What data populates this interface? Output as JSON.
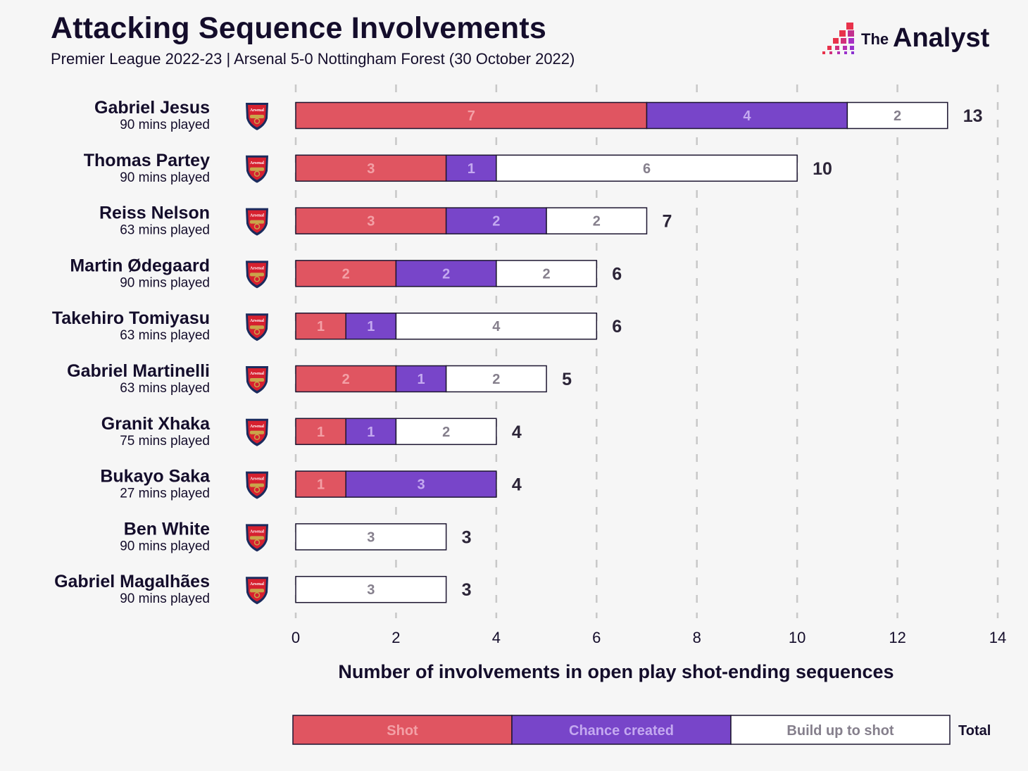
{
  "header": {
    "title": "Attacking Sequence Involvements",
    "subtitle": "Premier League 2022-23 | Arsenal 5-0 Nottingham Forest (30 October 2022)",
    "brand_small": "The",
    "brand_large": "Analyst"
  },
  "colors": {
    "shot": "#e05561",
    "chance": "#7845c9",
    "buildup": "#ffffff",
    "shot_text": "#f3a0a6",
    "chance_text": "#c4a9f0",
    "buildup_text": "#857f8c",
    "outline": "#1c1530",
    "grid": "#c8c8c8",
    "badge_red": "#d6202f",
    "badge_navy": "#1b2b5e",
    "badge_gold": "#c9a54a"
  },
  "chart_data": {
    "type": "bar",
    "orientation": "horizontal",
    "stacked": true,
    "title": "Attacking Sequence Involvements",
    "subtitle": "Premier League 2022-23 | Arsenal 5-0 Nottingham Forest (30 October 2022)",
    "xlabel": "Number of involvements in open play shot-ending sequences",
    "ylabel": "",
    "xlim": [
      0,
      14
    ],
    "xticks": [
      0,
      2,
      4,
      6,
      8,
      10,
      12,
      14
    ],
    "grid": "vertical-dashed",
    "team_badge": "Arsenal",
    "categories": [
      "Gabriel Jesus",
      "Thomas Partey",
      "Reiss Nelson",
      "Martin Ødegaard",
      "Takehiro Tomiyasu",
      "Gabriel Martinelli",
      "Granit Xhaka",
      "Bukayo Saka",
      "Ben White",
      "Gabriel Magalhães"
    ],
    "minutes_played": [
      "90 mins played",
      "90 mins played",
      "63 mins played",
      "90 mins played",
      "63 mins played",
      "63 mins played",
      "75 mins played",
      "27 mins played",
      "90 mins played",
      "90 mins played"
    ],
    "series": [
      {
        "name": "Shot",
        "key": "shot",
        "values": [
          7,
          3,
          3,
          2,
          1,
          2,
          1,
          1,
          0,
          0
        ]
      },
      {
        "name": "Chance created",
        "key": "chance",
        "values": [
          4,
          1,
          2,
          2,
          1,
          1,
          1,
          3,
          0,
          0
        ]
      },
      {
        "name": "Build up to shot",
        "key": "buildup",
        "values": [
          2,
          6,
          2,
          2,
          4,
          2,
          2,
          0,
          3,
          3
        ]
      }
    ],
    "totals": [
      13,
      10,
      7,
      6,
      6,
      5,
      4,
      4,
      3,
      3
    ],
    "legend": {
      "position": "bottom",
      "items": [
        "Shot",
        "Chance created",
        "Build up to shot"
      ],
      "total_label": "Total"
    }
  }
}
